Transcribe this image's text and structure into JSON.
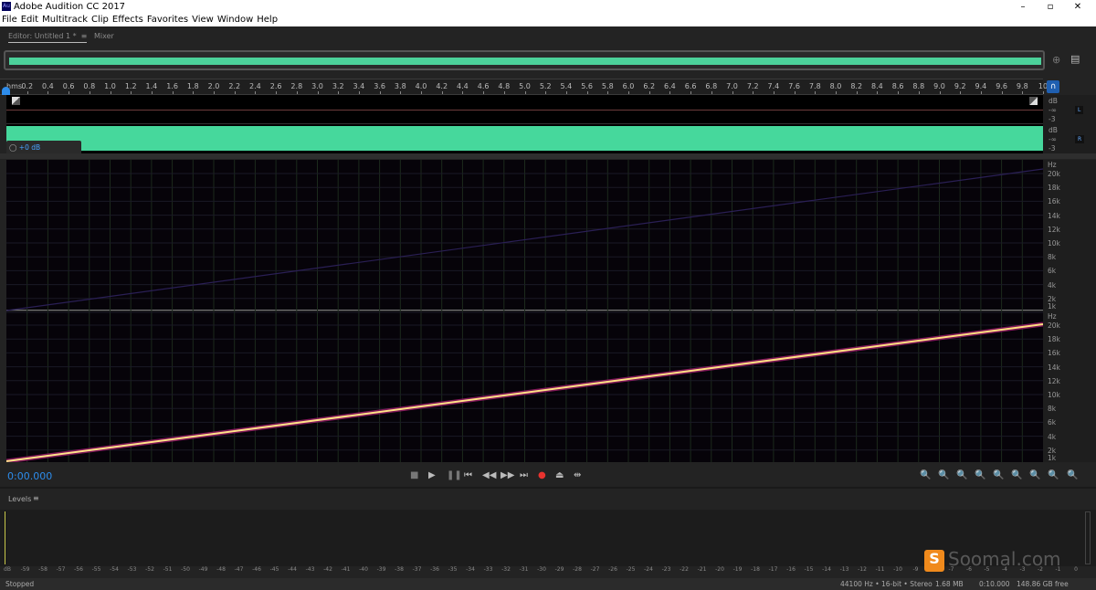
{
  "window": {
    "title": "Adobe Audition CC 2017",
    "logo_text": "Au"
  },
  "menu": [
    "File",
    "Edit",
    "Multitrack",
    "Clip",
    "Effects",
    "Favorites",
    "View",
    "Window",
    "Help"
  ],
  "tabs": {
    "editor": "Editor: Untitled 1 *",
    "mixer": "Mixer"
  },
  "ruler": {
    "unit": "hms",
    "labels": [
      "0.2",
      "0.4",
      "0.6",
      "0.8",
      "1.0",
      "1.2",
      "1.4",
      "1.6",
      "1.8",
      "2.0",
      "2.2",
      "2.4",
      "2.6",
      "2.8",
      "3.0",
      "3.2",
      "3.4",
      "3.6",
      "3.8",
      "4.0",
      "4.2",
      "4.4",
      "4.6",
      "4.8",
      "5.0",
      "5.2",
      "5.4",
      "5.6",
      "5.8",
      "6.0",
      "6.2",
      "6.4",
      "6.6",
      "6.8",
      "7.0",
      "7.2",
      "7.4",
      "7.6",
      "7.8",
      "8.0",
      "8.2",
      "8.4",
      "8.6",
      "8.8",
      "9.0",
      "9.2",
      "9.4",
      "9.6",
      "9.8",
      "10"
    ]
  },
  "waveform": {
    "color": "#46d89c",
    "channels": [
      "L",
      "R"
    ],
    "db_labels": [
      "dB",
      "-∞",
      "-3"
    ],
    "volume": "+0 dB"
  },
  "spectral": {
    "hz_label": "Hz",
    "labels": [
      "20k",
      "18k",
      "16k",
      "14k",
      "12k",
      "10k",
      "8k",
      "6k",
      "4k",
      "2k",
      "1k"
    ]
  },
  "transport": {
    "time": "0:00.000",
    "time_color": "#2d8ceb",
    "record_color": "#e8332f"
  },
  "levels": {
    "title": "Levels",
    "scale": [
      "dB",
      "-59",
      "-58",
      "-57",
      "-56",
      "-55",
      "-54",
      "-53",
      "-52",
      "-51",
      "-50",
      "-49",
      "-48",
      "-47",
      "-46",
      "-45",
      "-44",
      "-43",
      "-42",
      "-41",
      "-40",
      "-39",
      "-38",
      "-37",
      "-36",
      "-35",
      "-34",
      "-33",
      "-32",
      "-31",
      "-30",
      "-29",
      "-28",
      "-27",
      "-26",
      "-25",
      "-24",
      "-23",
      "-22",
      "-21",
      "-20",
      "-19",
      "-18",
      "-17",
      "-16",
      "-15",
      "-14",
      "-13",
      "-12",
      "-11",
      "-10",
      "-9",
      "-8",
      "-7",
      "-6",
      "-5",
      "-4",
      "-3",
      "-2",
      "-1",
      "0"
    ]
  },
  "watermark": "Soomal.com",
  "status": {
    "state": "Stopped",
    "format": "44100 Hz • 16-bit • Stereo",
    "size": "1.68 MB",
    "duration": "0:10.000",
    "free": "148.86 GB free"
  }
}
